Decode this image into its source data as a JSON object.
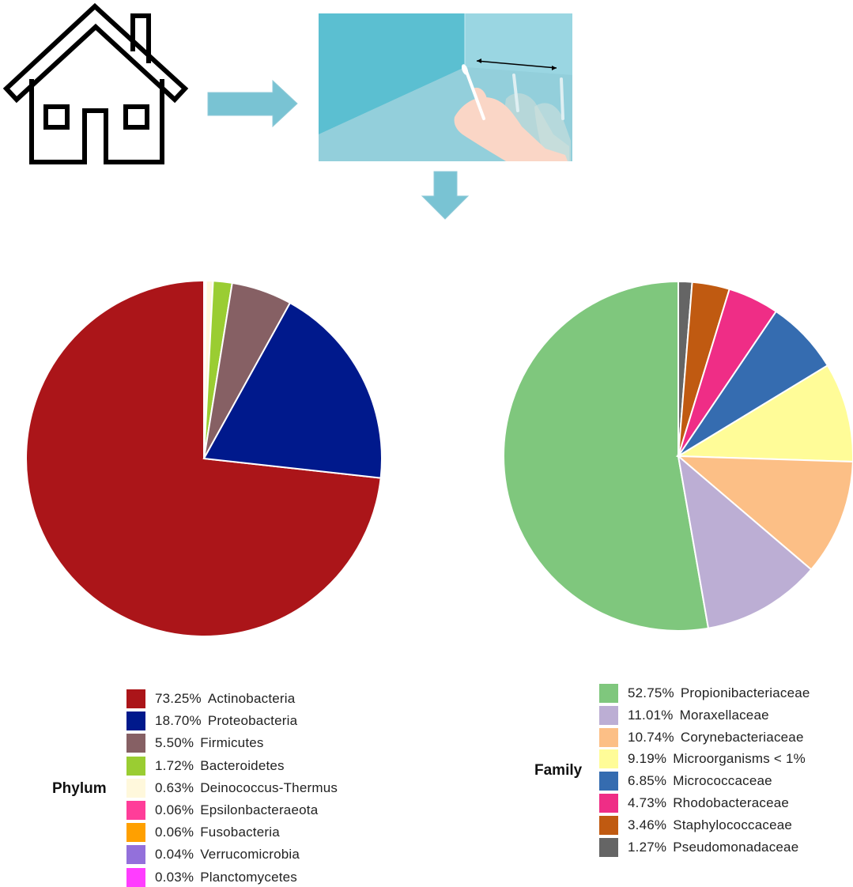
{
  "chart_data": [
    {
      "type": "pie",
      "legend_title": "Phylum",
      "legend_position": "bottom",
      "slices": [
        {
          "label": "Actinobacteria",
          "pct_label": "73.25%",
          "value": 73.25,
          "color": "#ab1519"
        },
        {
          "label": "Proteobacteria",
          "pct_label": "18.70%",
          "value": 18.7,
          "color": "#00198c"
        },
        {
          "label": "Firmicutes",
          "pct_label": "5.50%",
          "value": 5.5,
          "color": "#866064"
        },
        {
          "label": "Bacteroidetes",
          "pct_label": "1.72%",
          "value": 1.72,
          "color": "#9acd32"
        },
        {
          "label": "Deinococcus-Thermus",
          "pct_label": "0.63%",
          "value": 0.63,
          "color": "#fff8dc"
        },
        {
          "label": "Epsilonbacteraeota",
          "pct_label": "0.06%",
          "value": 0.06,
          "color": "#ff3d99"
        },
        {
          "label": "Fusobacteria",
          "pct_label": "0.06%",
          "value": 0.06,
          "color": "#ffa000"
        },
        {
          "label": "Verrucomicrobia",
          "pct_label": "0.04%",
          "value": 0.04,
          "color": "#9370db"
        },
        {
          "label": "Planctomycetes",
          "pct_label": "0.03%",
          "value": 0.03,
          "color": "#ff3dff"
        }
      ]
    },
    {
      "type": "pie",
      "legend_title": "Family",
      "legend_position": "bottom",
      "slices": [
        {
          "label": "Propionibacteriaceae",
          "pct_label": "52.75%",
          "value": 52.75,
          "color": "#7fc77d"
        },
        {
          "label": "Moraxellaceae",
          "pct_label": "11.01%",
          "value": 11.01,
          "color": "#bcaed4"
        },
        {
          "label": "Corynebacteriaceae",
          "pct_label": "10.74%",
          "value": 10.74,
          "color": "#fcbf86"
        },
        {
          "label": "Microorganisms < 1%",
          "pct_label": "9.19%",
          "value": 9.19,
          "color": "#fffc98"
        },
        {
          "label": "Micrococcaceae",
          "pct_label": "6.85%",
          "value": 6.85,
          "color": "#356cb0"
        },
        {
          "label": "Rhodobacteraceae",
          "pct_label": "4.73%",
          "value": 4.73,
          "color": "#ef2d86"
        },
        {
          "label": "Staphylococcaceae",
          "pct_label": "3.46%",
          "value": 3.46,
          "color": "#c05a11"
        },
        {
          "label": "Pseudomonadaceae",
          "pct_label": "1.27%",
          "value": 1.27,
          "color": "#656565"
        }
      ]
    }
  ],
  "illustration": {
    "house_icon": "house-icon",
    "arrow_icon": "arrow-icon",
    "swab_illustration": "swab-sampling-illustration",
    "accent_color": "#79c3d3"
  }
}
